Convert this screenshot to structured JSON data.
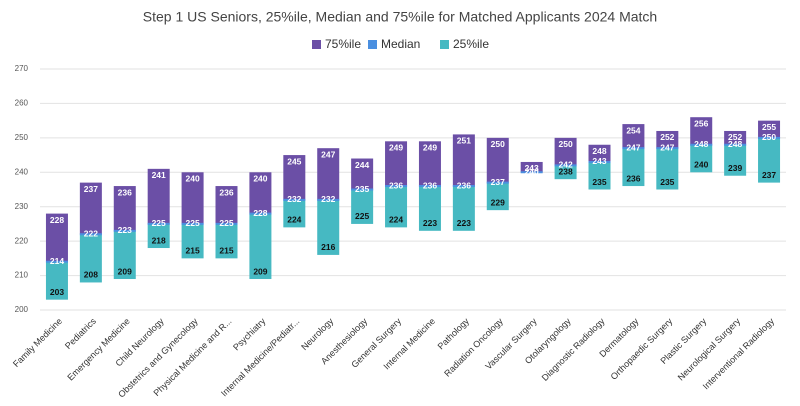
{
  "chart_data": {
    "type": "range-bar",
    "title": "Step 1 US Seniors, 25%ile, Median and 75%ile for Matched Applicants 2024 Match",
    "categories": [
      "Family Medicine",
      "Pediatrics",
      "Emergency Medicine",
      "Child Neurology",
      "Obstetrics and Gynecology",
      "Physical Medicine and R...",
      "Psychiatry",
      "Internal Medicine/Pediatr...",
      "Neurology",
      "Anesthesiology",
      "General Surgery",
      "Internal Medicine",
      "Pathology",
      "Radiation Oncology",
      "Vascular Surgery",
      "Otolaryngology",
      "Diagnostic Radiology",
      "Dermatology",
      "Orthopaedic Surgery",
      "Plastic Surgery",
      "Neurological Surgery",
      "Interventional Radiology"
    ],
    "series": [
      {
        "name": "75%ile",
        "color": "#6b4fa6",
        "values": [
          228,
          237,
          236,
          241,
          240,
          236,
          240,
          245,
          247,
          244,
          249,
          249,
          251,
          250,
          243,
          250,
          248,
          254,
          252,
          256,
          252,
          255
        ]
      },
      {
        "name": "Median",
        "color": "#4a8fe0",
        "values": [
          214,
          222,
          223,
          225,
          225,
          225,
          228,
          232,
          232,
          235,
          236,
          236,
          236,
          237,
          240,
          242,
          243,
          247,
          247,
          248,
          248,
          250
        ]
      },
      {
        "name": "25%ile",
        "color": "#46b9c2",
        "values": [
          203,
          208,
          209,
          218,
          215,
          215,
          209,
          224,
          216,
          225,
          224,
          223,
          223,
          229,
          240,
          238,
          235,
          236,
          235,
          240,
          239,
          237
        ]
      }
    ],
    "ylim": [
      200,
      270
    ],
    "yticks": [
      200,
      210,
      220,
      230,
      240,
      250,
      260,
      270
    ],
    "grid": true,
    "legend": "top"
  }
}
